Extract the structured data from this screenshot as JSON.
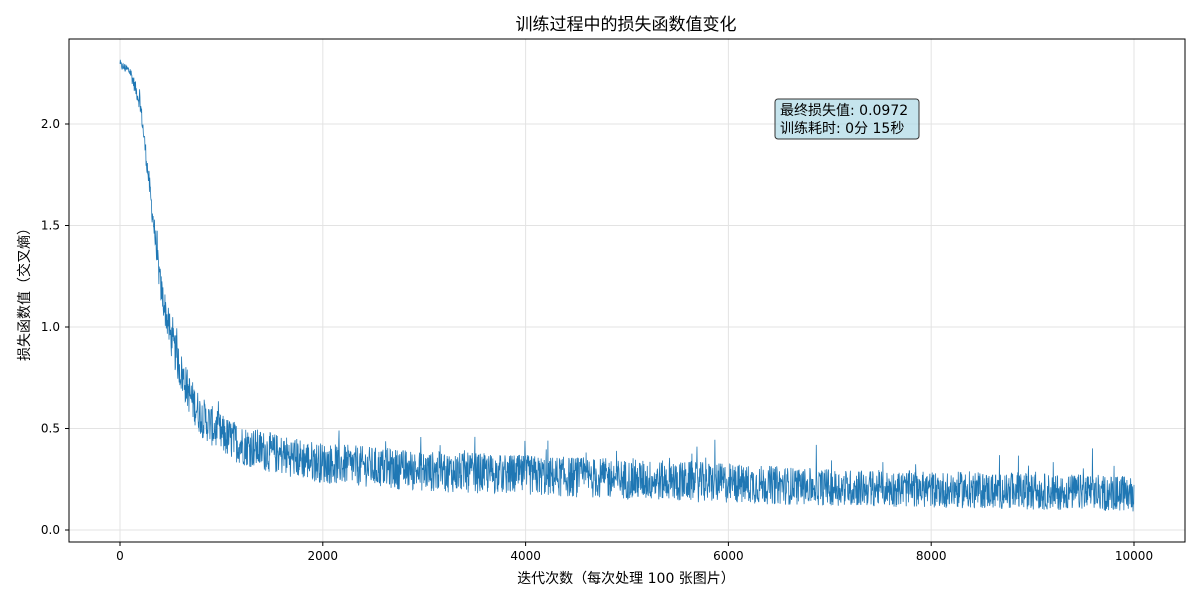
{
  "chart_data": {
    "type": "line",
    "title": "训练过程中的损失函数值变化",
    "xlabel": "迭代次数（每次处理 100 张图片）",
    "ylabel": "损失函数值（交叉熵）",
    "xlim": [
      -500,
      10500
    ],
    "ylim": [
      -0.05,
      2.4
    ],
    "xticks": [
      0,
      2000,
      4000,
      6000,
      8000,
      10000
    ],
    "xtick_labels": [
      "0",
      "2000",
      "4000",
      "6000",
      "8000",
      "10000"
    ],
    "yticks": [
      0.0,
      0.5,
      1.0,
      1.5,
      2.0
    ],
    "ytick_labels": [
      "0.0",
      "0.5",
      "1.0",
      "1.5",
      "2.0"
    ],
    "grid": true,
    "line_color": "#1f77b4",
    "series": [
      {
        "name": "loss",
        "description": "noisy per-iteration loss, ~10000 points; trend values below with noise amplitude",
        "x": [
          0,
          100,
          200,
          300,
          400,
          500,
          600,
          700,
          800,
          1000,
          1200,
          1500,
          2000,
          2500,
          3000,
          3500,
          4000,
          5000,
          6000,
          7000,
          8000,
          9000,
          10000
        ],
        "trend": [
          2.29,
          2.26,
          2.1,
          1.65,
          1.2,
          0.95,
          0.78,
          0.65,
          0.56,
          0.47,
          0.42,
          0.38,
          0.33,
          0.31,
          0.29,
          0.28,
          0.27,
          0.25,
          0.23,
          0.21,
          0.2,
          0.19,
          0.18
        ],
        "noise_amplitude": [
          0.02,
          0.03,
          0.04,
          0.06,
          0.08,
          0.09,
          0.1,
          0.1,
          0.1,
          0.1,
          0.1,
          0.1,
          0.1,
          0.1,
          0.1,
          0.1,
          0.1,
          0.1,
          0.1,
          0.09,
          0.09,
          0.09,
          0.09
        ]
      }
    ],
    "annotation": {
      "lines": [
        "最终损失值: 0.0972",
        "训练耗时: 0分 15秒"
      ],
      "box_color": "#add8e6"
    }
  }
}
